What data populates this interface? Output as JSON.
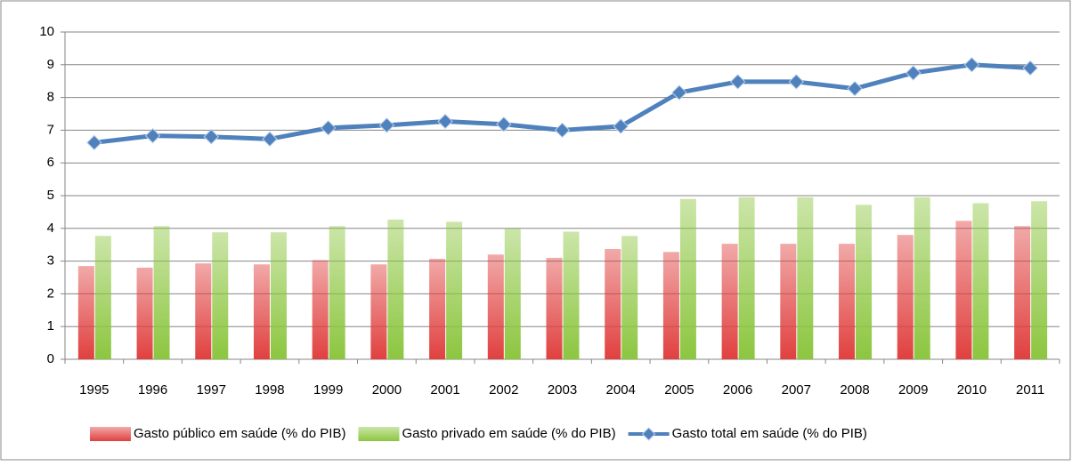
{
  "chart_data": {
    "type": "bar-line",
    "categories": [
      "1995",
      "1996",
      "1997",
      "1998",
      "1999",
      "2000",
      "2001",
      "2002",
      "2003",
      "2004",
      "2005",
      "2006",
      "2007",
      "2008",
      "2009",
      "2010",
      "2011"
    ],
    "series": [
      {
        "name": "Gasto público em saúde (% do PIB)",
        "type": "bar",
        "color": "#e0403f",
        "values": [
          2.85,
          2.8,
          2.93,
          2.9,
          3.03,
          2.9,
          3.07,
          3.2,
          3.1,
          3.37,
          3.28,
          3.53,
          3.53,
          3.53,
          3.8,
          4.23,
          4.07
        ]
      },
      {
        "name": "Gasto privado em saúde (% do PIB)",
        "type": "bar",
        "color": "#8cc63f",
        "values": [
          3.77,
          4.07,
          3.88,
          3.88,
          4.07,
          4.27,
          4.2,
          4.0,
          3.9,
          3.77,
          4.9,
          4.95,
          4.95,
          4.72,
          4.95,
          4.77,
          4.83
        ]
      },
      {
        "name": "Gasto total em saúde (% do PIB)",
        "type": "line",
        "color": "#4f81bd",
        "values": [
          6.62,
          6.83,
          6.8,
          6.73,
          7.07,
          7.15,
          7.27,
          7.18,
          7.0,
          7.12,
          8.15,
          8.48,
          8.48,
          8.27,
          8.75,
          9.0,
          8.9
        ]
      }
    ],
    "ylim": [
      0,
      10
    ],
    "yticks": [
      0,
      1,
      2,
      3,
      4,
      5,
      6,
      7,
      8,
      9,
      10
    ],
    "grid": true,
    "legend": "bottom"
  }
}
